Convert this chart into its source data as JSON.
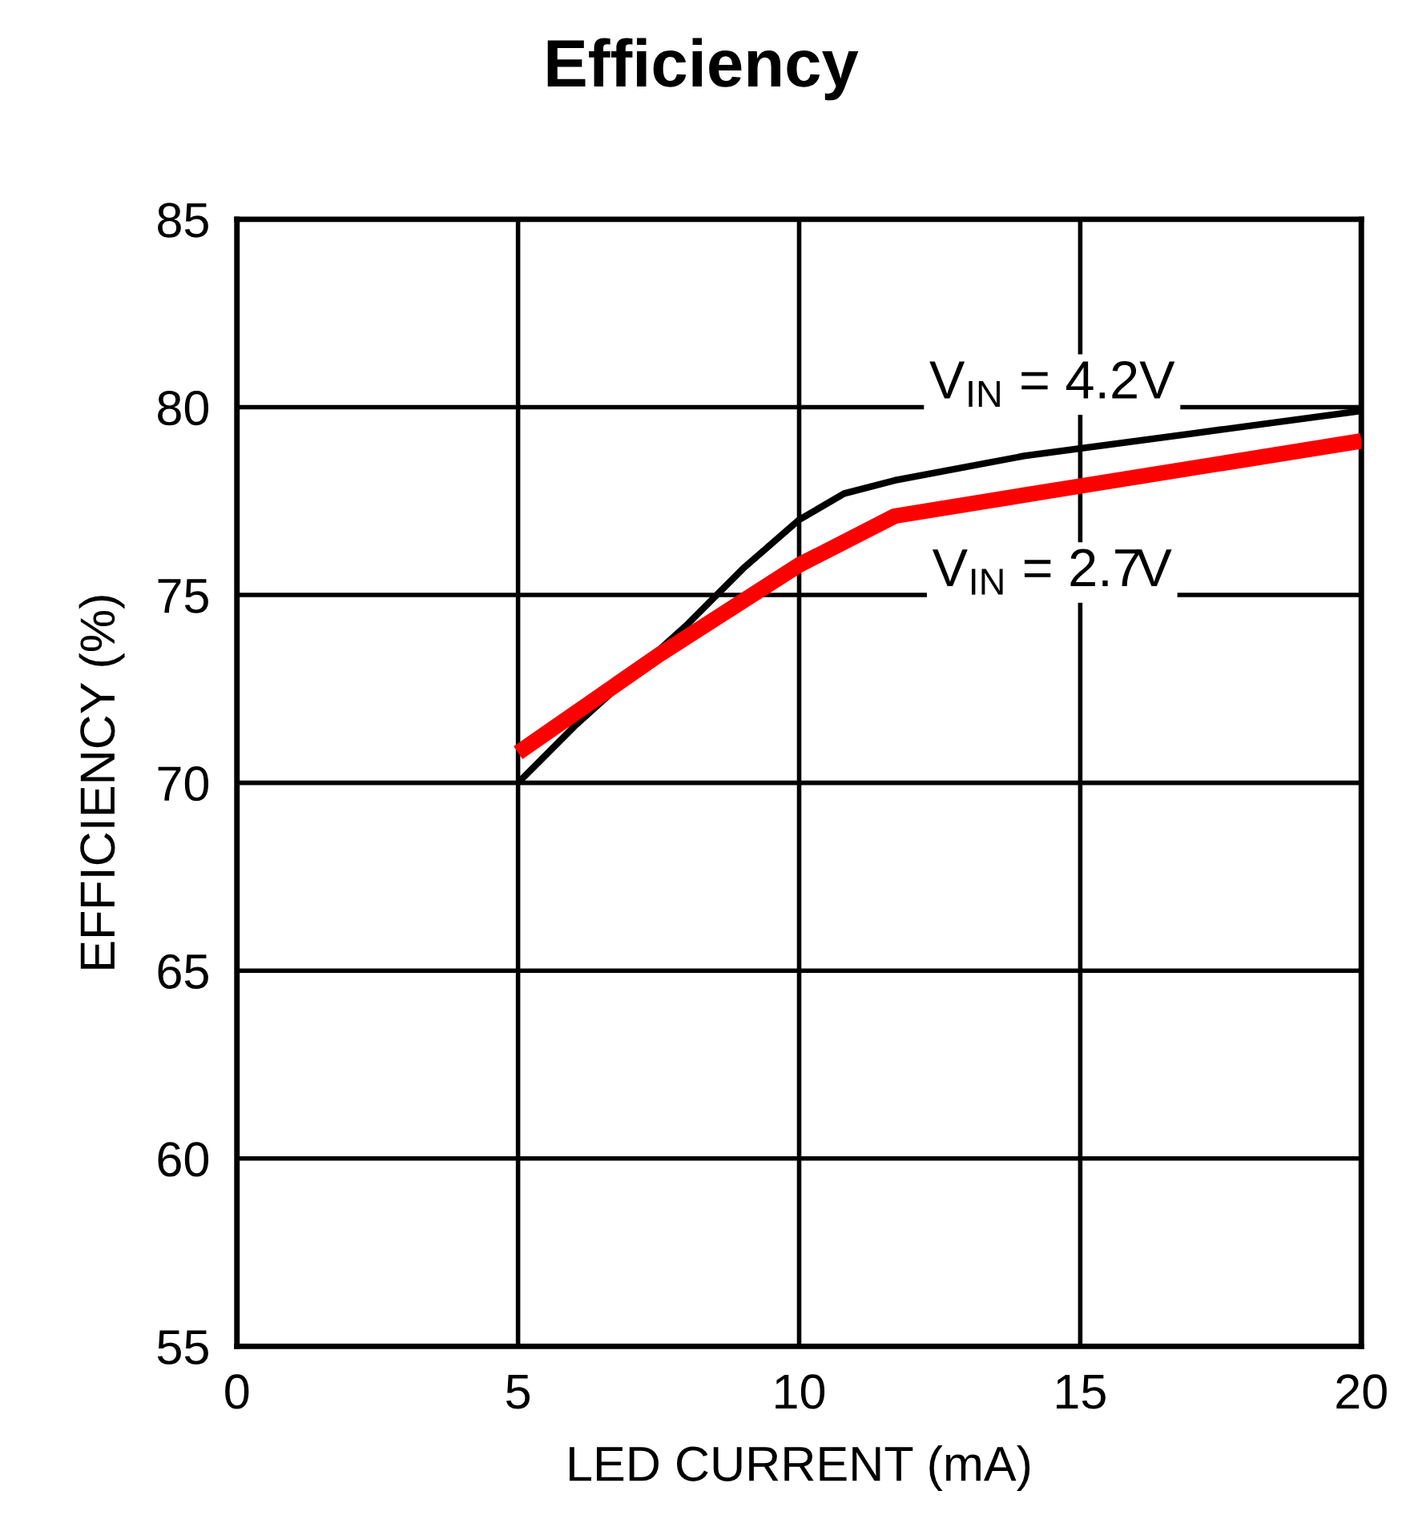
{
  "chart_data": {
    "type": "line",
    "title": "Efficiency",
    "xlabel": "LED CURRENT (mA)",
    "ylabel": "EFFICIENCY (%)",
    "series": [
      {
        "name": "V$_{IN}$ = 4.2V",
        "color": "#000000",
        "x": [
          5,
          6,
          8,
          9,
          10,
          10.8,
          11.7,
          14,
          17,
          20
        ],
        "values": [
          70,
          71.5,
          74.2,
          75.7,
          77,
          77.7,
          78.05,
          78.7,
          79.3,
          79.9
        ]
      },
      {
        "name": "V$_{IN}$ = 2.7V",
        "color": "#ff0000",
        "x": [
          5,
          7.5,
          10,
          11.7,
          15,
          20
        ],
        "values": [
          70.8,
          73.4,
          75.8,
          77.1,
          77.9,
          79.1
        ]
      }
    ],
    "xlim": [
      0,
      20
    ],
    "xticks": [
      0,
      5,
      10,
      15,
      20
    ],
    "ylim": [
      55,
      85
    ],
    "yticks": [
      55,
      60,
      65,
      70,
      75,
      80,
      85
    ],
    "grid": true,
    "line_style": "solid",
    "marker": "none",
    "legend": false
  }
}
